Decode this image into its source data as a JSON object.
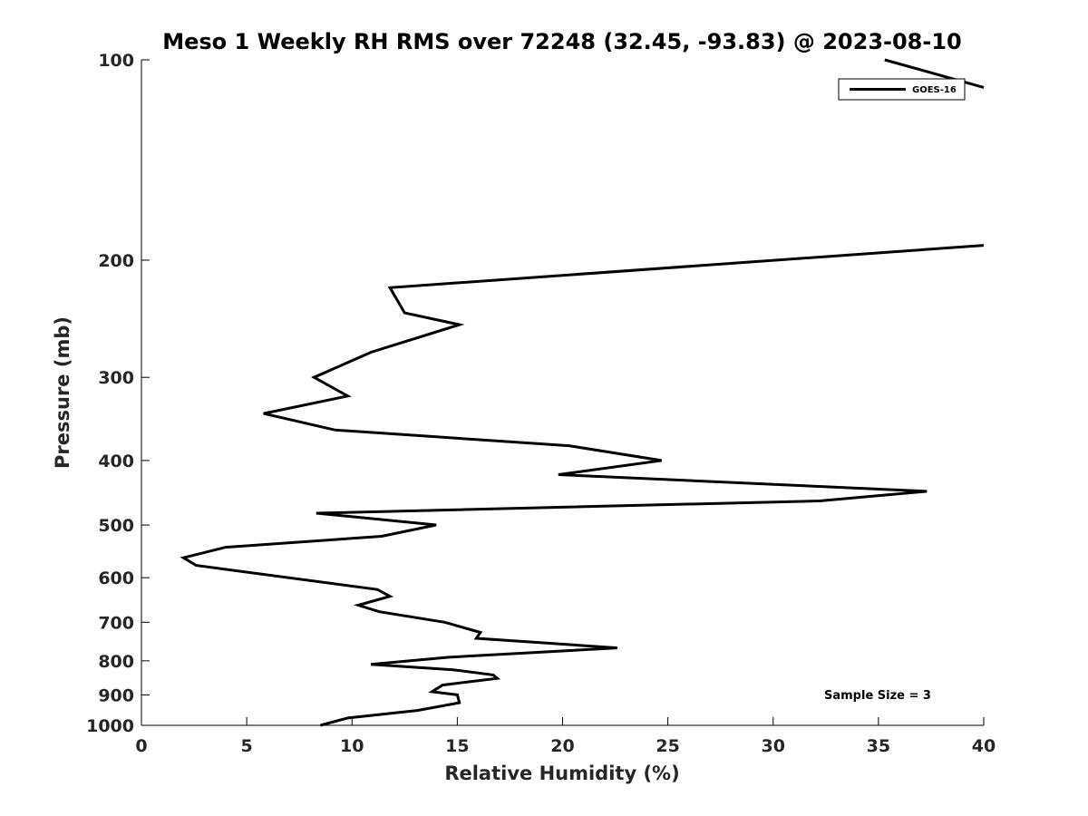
{
  "chart_data": {
    "type": "line",
    "title": "Meso 1 Weekly RH RMS over 72248 (32.45, -93.83) @ 2023-08-10",
    "xlabel": "Relative Humidity (%)",
    "ylabel": "Pressure (mb)",
    "xlim": [
      0,
      40
    ],
    "ylim": [
      1000,
      100
    ],
    "y_scale": "log",
    "y_inverted": true,
    "grid": false,
    "legend_position": "top-right",
    "x_ticks": [
      0,
      5,
      10,
      15,
      20,
      25,
      30,
      35,
      40
    ],
    "x_tick_labels": [
      "0",
      "5",
      "10",
      "15",
      "20",
      "25",
      "30",
      "35",
      "40"
    ],
    "y_ticks": [
      100,
      200,
      300,
      400,
      500,
      600,
      700,
      800,
      900,
      1000
    ],
    "y_tick_labels": [
      "100",
      "200",
      "300",
      "400",
      "500",
      "600",
      "700",
      "800",
      "900",
      "1000"
    ],
    "series": [
      {
        "name": "GOES-16",
        "color": "#000000",
        "points": [
          {
            "x": 8.5,
            "y": 1000
          },
          {
            "x": 9.8,
            "y": 975
          },
          {
            "x": 13.1,
            "y": 950
          },
          {
            "x": 15.1,
            "y": 925
          },
          {
            "x": 15.0,
            "y": 900
          },
          {
            "x": 13.8,
            "y": 890
          },
          {
            "x": 14.3,
            "y": 870
          },
          {
            "x": 16.9,
            "y": 850
          },
          {
            "x": 16.7,
            "y": 840
          },
          {
            "x": 14.8,
            "y": 825
          },
          {
            "x": 10.9,
            "y": 810
          },
          {
            "x": 14.6,
            "y": 790
          },
          {
            "x": 22.6,
            "y": 765
          },
          {
            "x": 15.9,
            "y": 740
          },
          {
            "x": 16.1,
            "y": 725
          },
          {
            "x": 14.4,
            "y": 700
          },
          {
            "x": 11.3,
            "y": 675
          },
          {
            "x": 10.3,
            "y": 660
          },
          {
            "x": 11.8,
            "y": 640
          },
          {
            "x": 11.2,
            "y": 625
          },
          {
            "x": 2.6,
            "y": 575
          },
          {
            "x": 2.0,
            "y": 560
          },
          {
            "x": 4.0,
            "y": 540
          },
          {
            "x": 11.4,
            "y": 520
          },
          {
            "x": 14.0,
            "y": 500
          },
          {
            "x": 8.3,
            "y": 480
          },
          {
            "x": 32.2,
            "y": 460
          },
          {
            "x": 37.3,
            "y": 445
          },
          {
            "x": 19.8,
            "y": 420
          },
          {
            "x": 24.7,
            "y": 400
          },
          {
            "x": 20.3,
            "y": 380
          },
          {
            "x": 9.2,
            "y": 360
          },
          {
            "x": 5.8,
            "y": 340
          },
          {
            "x": 9.8,
            "y": 320
          },
          {
            "x": 8.2,
            "y": 300
          },
          {
            "x": 10.9,
            "y": 275
          },
          {
            "x": 15.1,
            "y": 250
          },
          {
            "x": 12.5,
            "y": 240
          },
          {
            "x": 11.8,
            "y": 220
          },
          {
            "x": 40.0,
            "y": 190
          }
        ],
        "upper_segment": [
          {
            "x": 35.3,
            "y": 100
          },
          {
            "x": 40.0,
            "y": 110
          }
        ]
      }
    ],
    "annotation": "Sample Size = 3"
  }
}
